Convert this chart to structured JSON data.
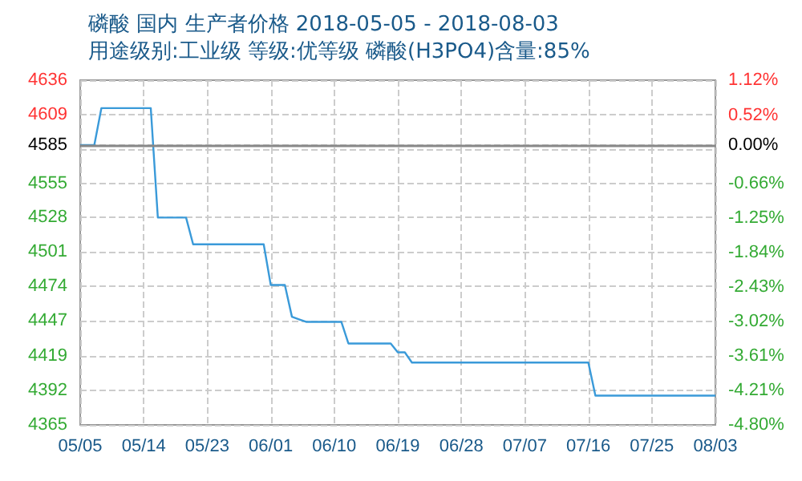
{
  "chart_data": {
    "type": "line",
    "title": "磷酸 国内 生产者价格 2018-05-05 - 2018-08-03",
    "subtitle": "用途级别:工业级 等级:优等级 磷酸(H3PO4)含量:85%",
    "x": [
      "2018-05-05",
      "2018-05-07",
      "2018-05-08",
      "2018-05-15",
      "2018-05-16",
      "2018-05-20",
      "2018-05-21",
      "2018-05-31",
      "2018-06-01",
      "2018-06-03",
      "2018-06-04",
      "2018-06-05",
      "2018-06-06",
      "2018-06-11",
      "2018-06-12",
      "2018-06-18",
      "2018-06-19",
      "2018-06-20",
      "2018-06-21",
      "2018-07-16",
      "2018-07-17",
      "2018-08-03"
    ],
    "series": [
      {
        "color": "#3a9ad9",
        "values": [
          4585,
          4585,
          4614,
          4614,
          4528,
          4528,
          4507,
          4507,
          4475,
          4475,
          4450,
          4448,
          4446,
          4446,
          4429,
          4429,
          4422,
          4422,
          4414,
          4414,
          4388,
          4388
        ]
      }
    ],
    "xlim": [
      "2018-05-05",
      "2018-08-03"
    ],
    "xticks": [
      {
        "value": "2018-05-05",
        "label": "05/05"
      },
      {
        "value": "2018-05-14",
        "label": "05/14"
      },
      {
        "value": "2018-05-23",
        "label": "05/23"
      },
      {
        "value": "2018-06-01",
        "label": "06/01"
      },
      {
        "value": "2018-06-10",
        "label": "06/10"
      },
      {
        "value": "2018-06-19",
        "label": "06/19"
      },
      {
        "value": "2018-06-28",
        "label": "06/28"
      },
      {
        "value": "2018-07-07",
        "label": "07/07"
      },
      {
        "value": "2018-07-16",
        "label": "07/16"
      },
      {
        "value": "2018-07-25",
        "label": "07/25"
      },
      {
        "value": "2018-08-03",
        "label": "08/03"
      }
    ],
    "ylim": [
      4365,
      4636
    ],
    "yticks": [
      4365,
      4392,
      4419,
      4447,
      4474,
      4501,
      4528,
      4555,
      {
        "value": 4582,
        "label": null
      },
      4585,
      4609,
      4636
    ],
    "y2lim": [
      -4.8,
      1.12
    ],
    "y2ticks": [
      {
        "value": -4.8,
        "label": "-4.80%"
      },
      {
        "value": -4.21,
        "label": "-4.21%"
      },
      {
        "value": -3.61,
        "label": "-3.61%"
      },
      {
        "value": -3.02,
        "label": "-3.02%"
      },
      {
        "value": -2.43,
        "label": "-2.43%"
      },
      {
        "value": -1.84,
        "label": "-1.84%"
      },
      {
        "value": -1.25,
        "label": "-1.25%"
      },
      {
        "value": -0.66,
        "label": "-0.66%"
      },
      {
        "value": 0,
        "label": "0.00%"
      },
      {
        "value": 0.52,
        "label": "0.52%"
      },
      {
        "value": 1.12,
        "label": "1.12%"
      }
    ],
    "ref_lines": [
      {
        "axis": "y",
        "value": 4585,
        "color": "#888888",
        "line_style": "solid"
      }
    ],
    "grid": true,
    "line_style": "solid",
    "marker": "none"
  }
}
